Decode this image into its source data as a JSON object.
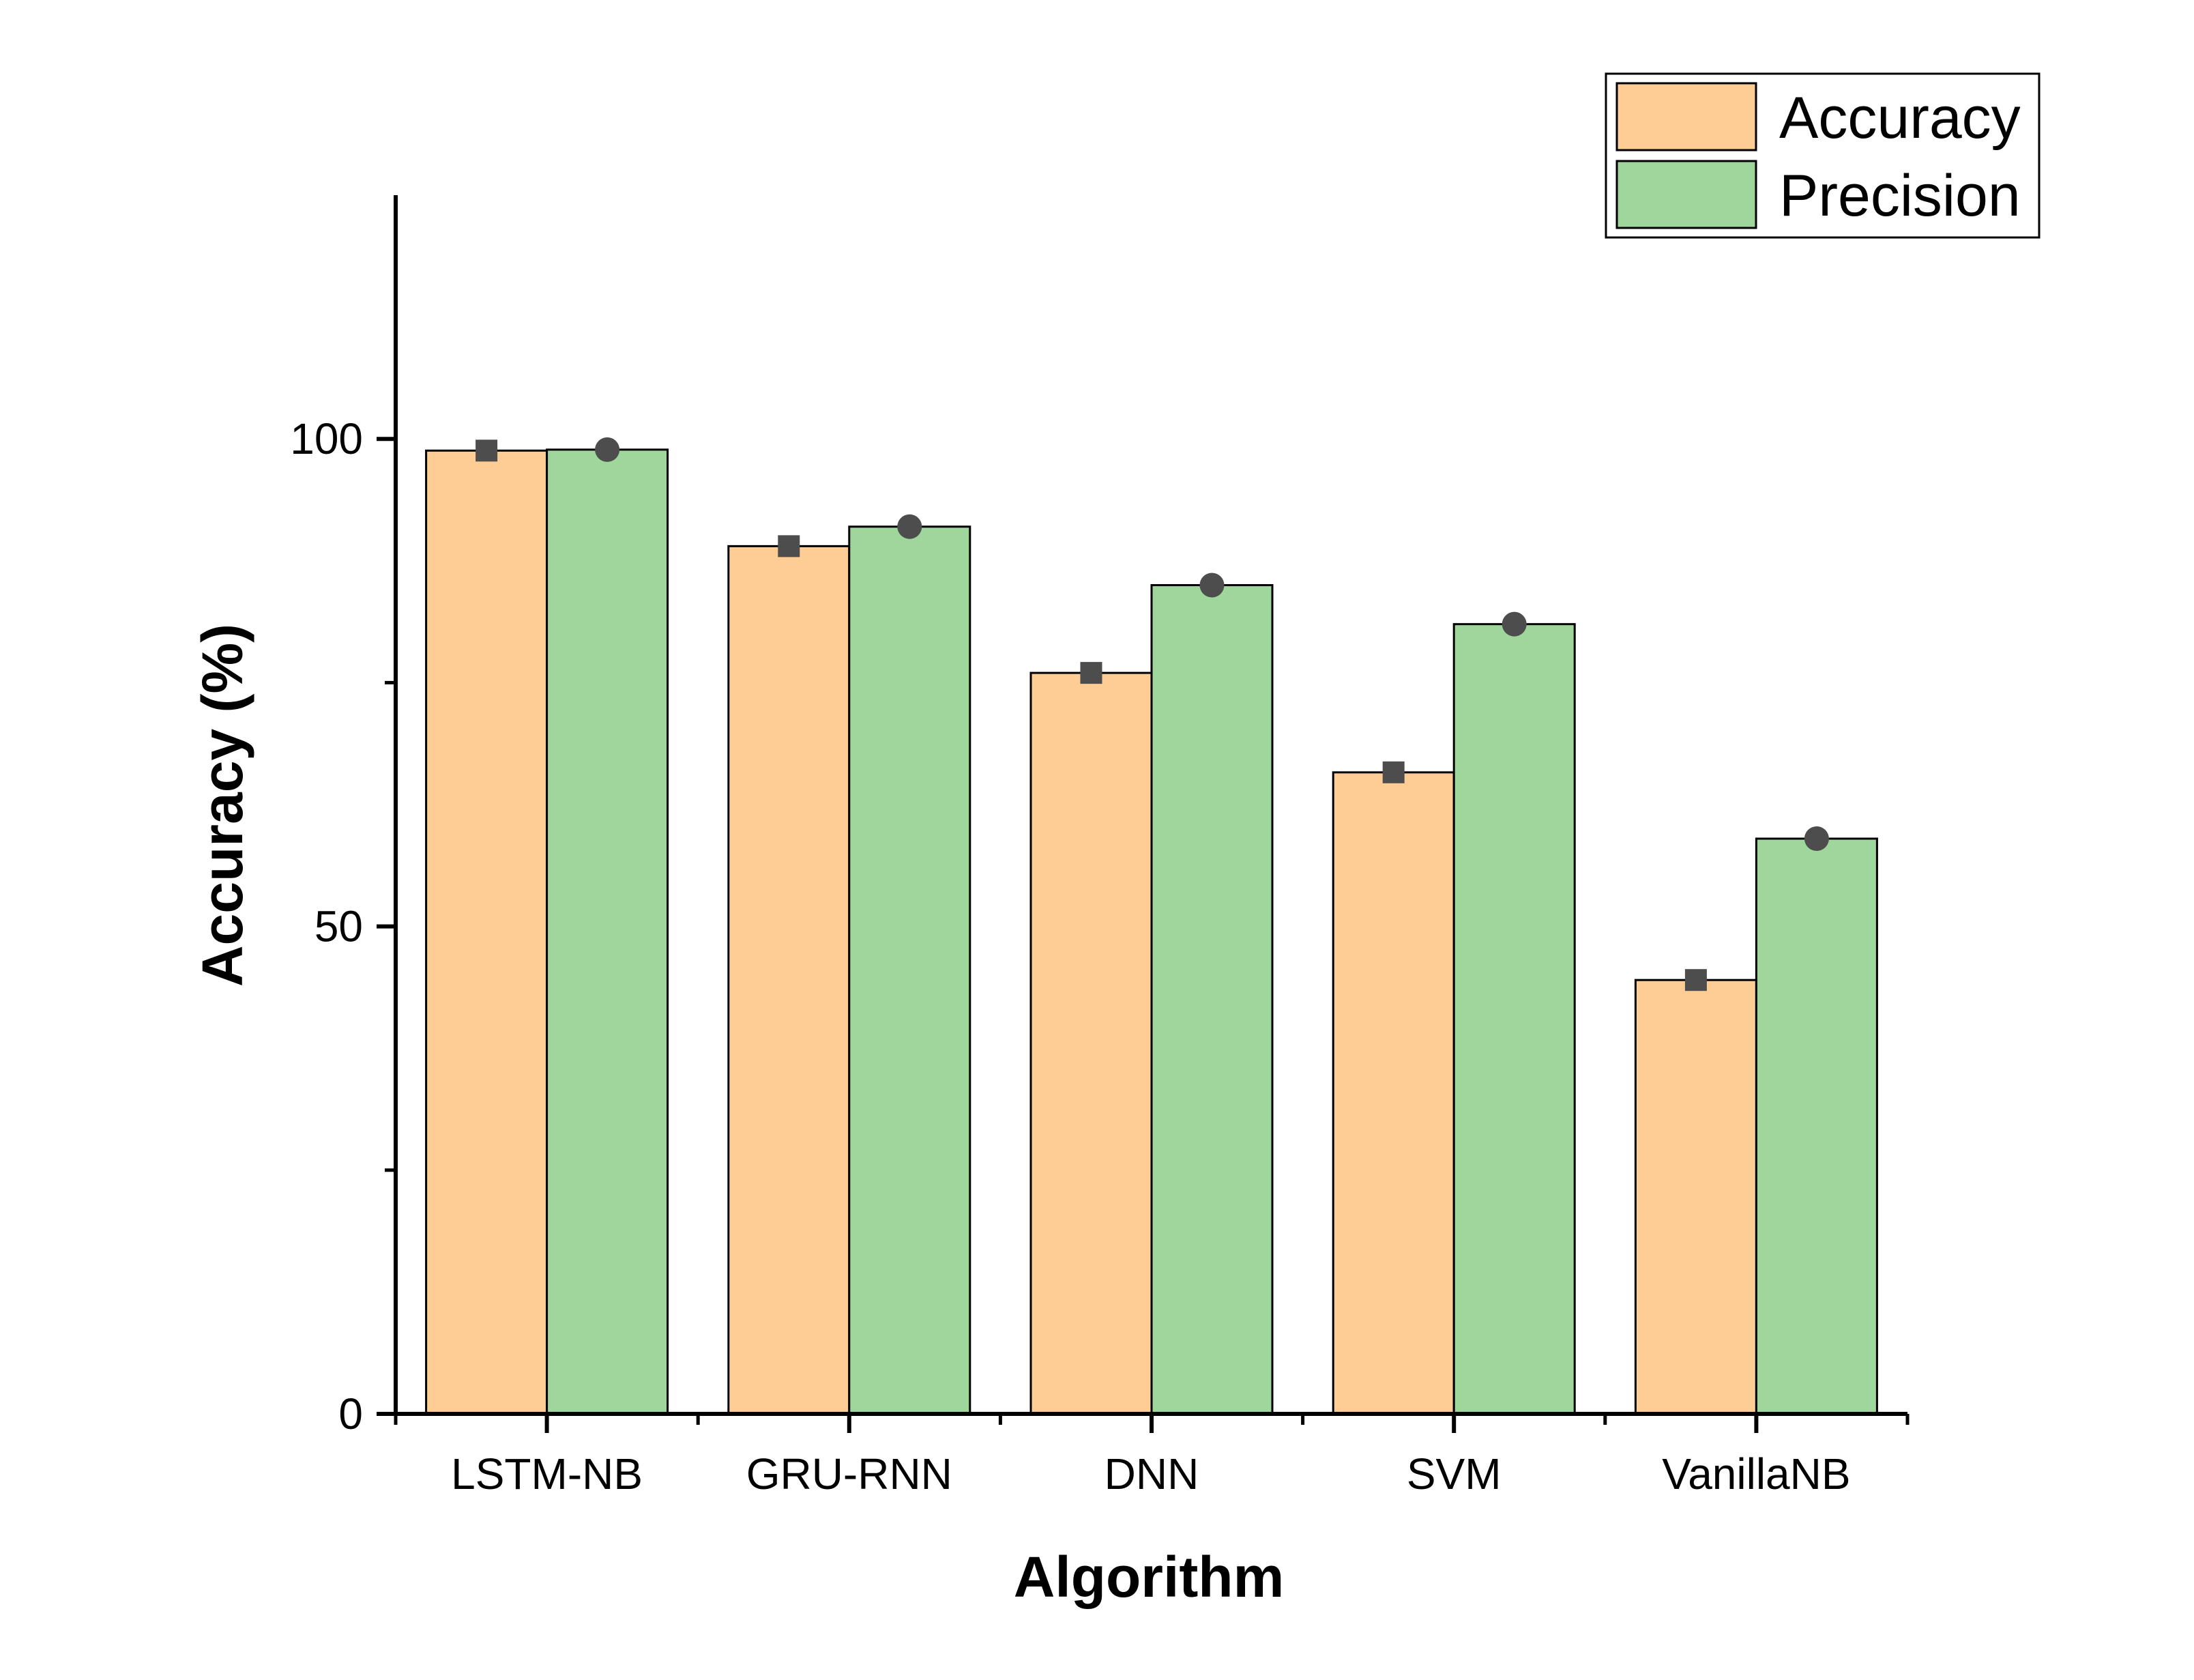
{
  "chart_data": {
    "type": "bar",
    "categories": [
      "LSTM-NB",
      "GRU-RNN",
      "DNN",
      "SVM",
      "VanillaNB"
    ],
    "series": [
      {
        "name": "Accuracy",
        "values": [
          98.8,
          89.0,
          76.0,
          65.8,
          44.5
        ],
        "color": "#FDCD95",
        "marker": "square"
      },
      {
        "name": "Precision",
        "values": [
          98.9,
          91.0,
          85.0,
          81.0,
          59.0
        ],
        "color": "#9ED69B",
        "marker": "circle"
      }
    ],
    "xlabel": "Algorithm",
    "ylabel": "Accuracy (%)",
    "ylim": [
      0,
      125
    ],
    "yticks_labeled": [
      0,
      50,
      100
    ],
    "yticks_minor": [
      25,
      75
    ],
    "grid": false,
    "legend_position": "top-right",
    "marker_color": "#4D4D4D"
  }
}
